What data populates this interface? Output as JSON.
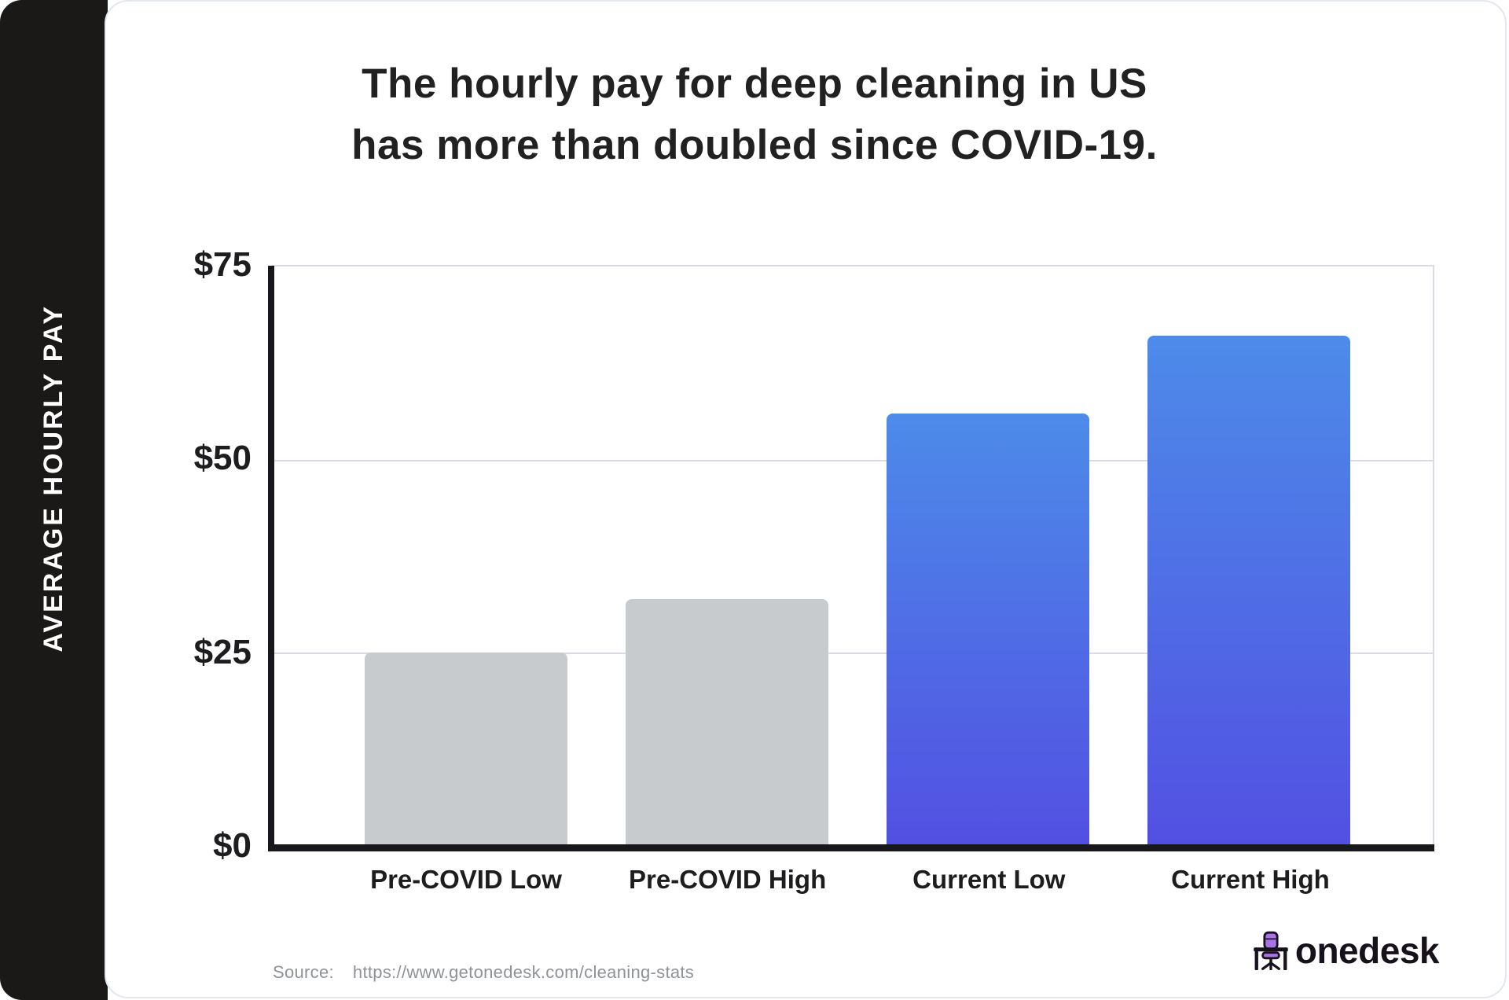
{
  "sidebar": {
    "label": "AVERAGE HOURLY PAY"
  },
  "title": {
    "line1": "The hourly pay for deep cleaning in US",
    "line2": "has more than doubled since COVID-19."
  },
  "chart_data": {
    "type": "bar",
    "categories": [
      "Pre-COVID Low",
      "Pre-COVID High",
      "Current Low",
      "Current High"
    ],
    "values": [
      25,
      32,
      56,
      66
    ],
    "title": "The hourly pay for deep cleaning in US has more than doubled since COVID-19.",
    "xlabel": "",
    "ylabel": "AVERAGE HOURLY PAY",
    "ylim": [
      0,
      75
    ],
    "y_ticks": [
      {
        "label": "$75",
        "value": 75
      },
      {
        "label": "$50",
        "value": 50
      },
      {
        "label": "$25",
        "value": 25
      },
      {
        "label": "$0",
        "value": 0
      }
    ],
    "grid": "horizontal",
    "legend": "none",
    "bar_styles": [
      {
        "type": "solid",
        "color": "#c7cbce"
      },
      {
        "type": "solid",
        "color": "#c7cbce"
      },
      {
        "type": "gradient",
        "from": "#4d8be9",
        "to": "#5250e2"
      },
      {
        "type": "gradient",
        "from": "#4d8be9",
        "to": "#5250e2"
      }
    ]
  },
  "footer": {
    "source_label": "Source:",
    "source_url": "https://www.getonedesk.com/cleaning-stats"
  },
  "brand": {
    "name": "onedesk"
  },
  "colors": {
    "rail_bg": "#1b1818",
    "card_bg": "#ffffff",
    "card_border": "#e3e7f0",
    "axis": "#17171c",
    "gridline": "#d9dce6",
    "text_dark": "#212121",
    "text_gray": "#8f9297",
    "chair_purple": "#a873e9",
    "icon_dark": "#18121c"
  }
}
